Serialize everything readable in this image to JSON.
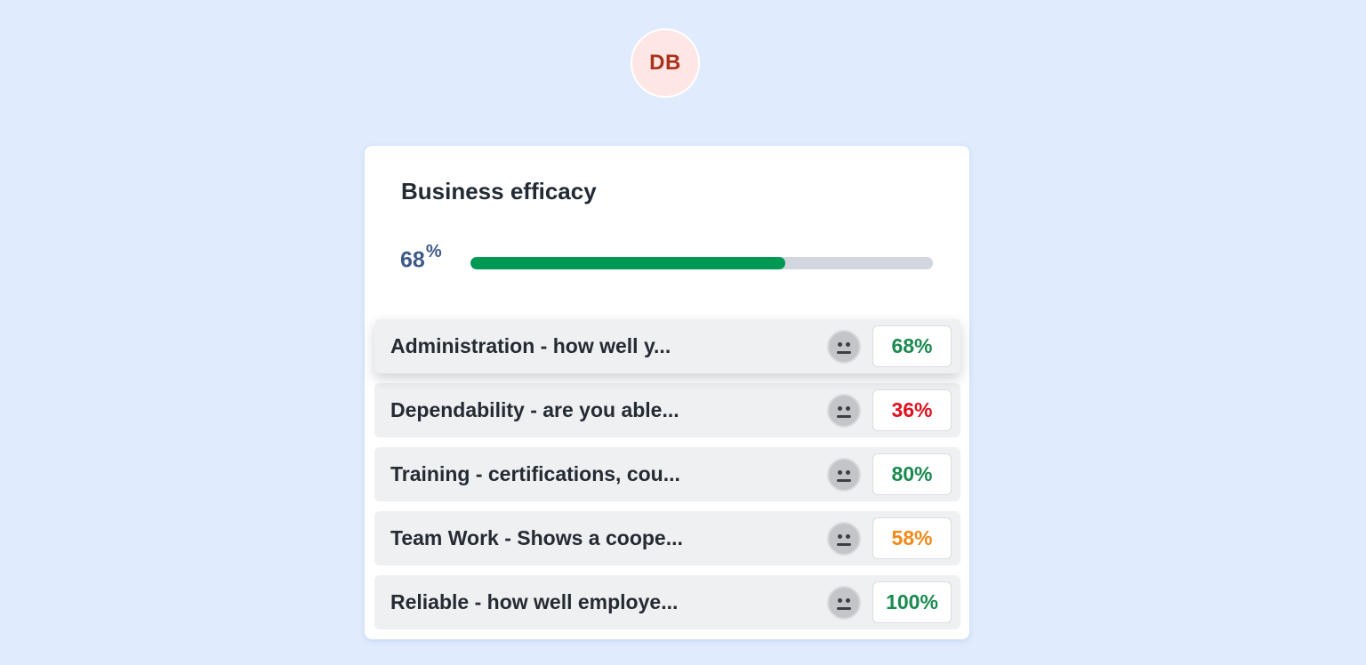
{
  "avatar": {
    "initials": "DB",
    "color": "#a8321b",
    "bg": "#fde6e3"
  },
  "card": {
    "title": "Business efficacy",
    "overall": {
      "value": "68",
      "unit": "%",
      "progress_fraction": 0.68,
      "fill_color": "#009954"
    }
  },
  "rows": [
    {
      "label": "Administration - how well y...",
      "score": "68%",
      "score_color": "#1a8a4f",
      "face_icon": "neutral-face-icon"
    },
    {
      "label": "Dependability - are you able...",
      "score": "36%",
      "score_color": "#e0101e",
      "face_icon": "neutral-face-icon"
    },
    {
      "label": "Training - certifications, cou...",
      "score": "80%",
      "score_color": "#1a8a4f",
      "face_icon": "neutral-face-icon"
    },
    {
      "label": "Team Work - Shows a coope...",
      "score": "58%",
      "score_color": "#f0891a",
      "face_icon": "neutral-face-icon"
    },
    {
      "label": "Reliable - how well employe...",
      "score": "100%",
      "score_color": "#1a8a4f",
      "face_icon": "neutral-face-icon"
    }
  ]
}
